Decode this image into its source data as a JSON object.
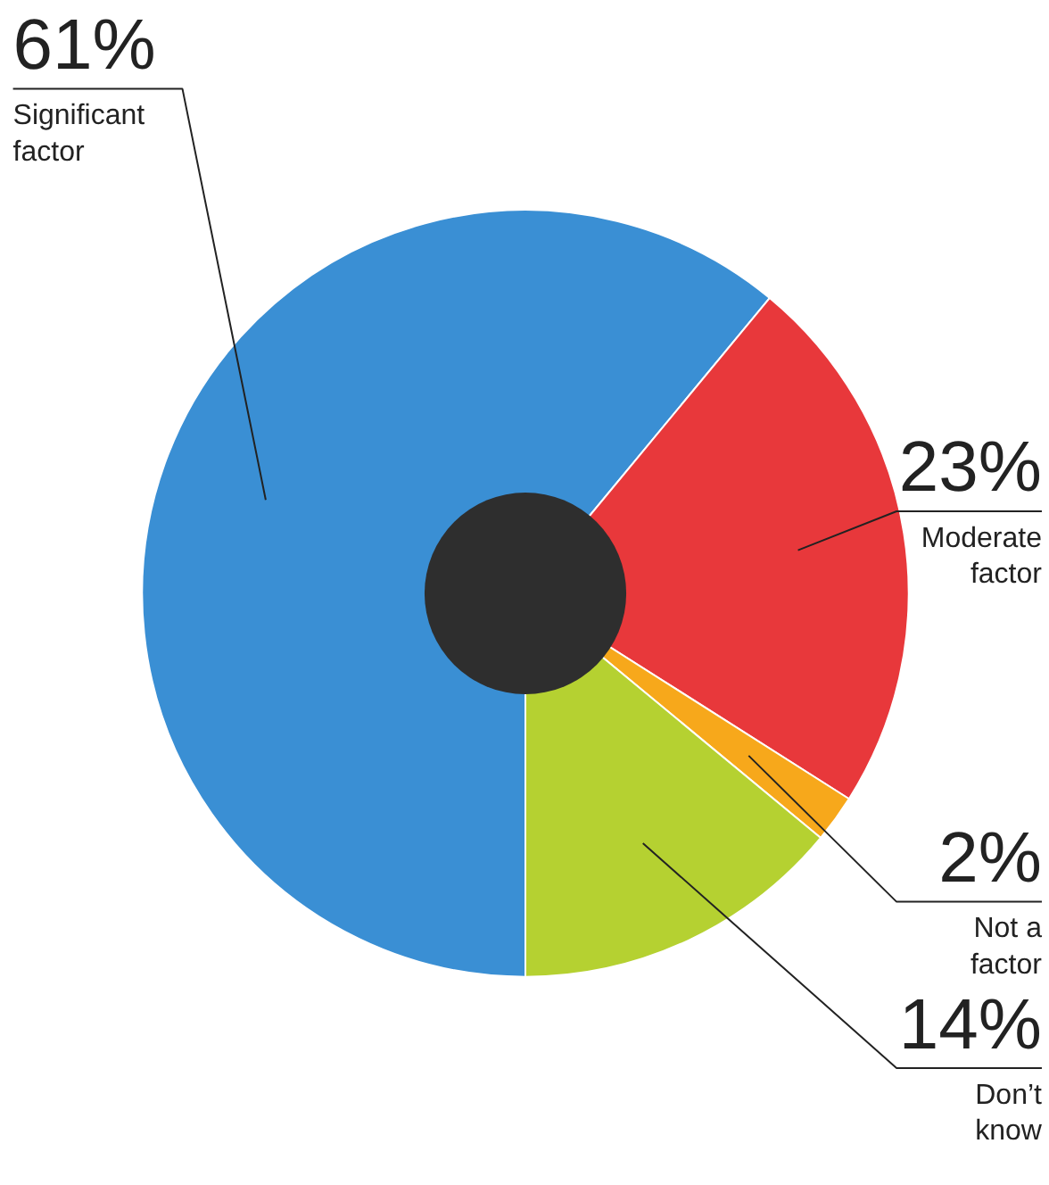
{
  "chart_data": {
    "type": "donut",
    "categories": [
      "Significant factor",
      "Moderate factor",
      "Not a factor",
      "Don’t know"
    ],
    "values": [
      61,
      23,
      2,
      14
    ],
    "colors": [
      "#3a8fd4",
      "#e8383b",
      "#f7a81b",
      "#b5d131"
    ],
    "value_labels": [
      "61%",
      "23%",
      "2%",
      "14%"
    ]
  }
}
